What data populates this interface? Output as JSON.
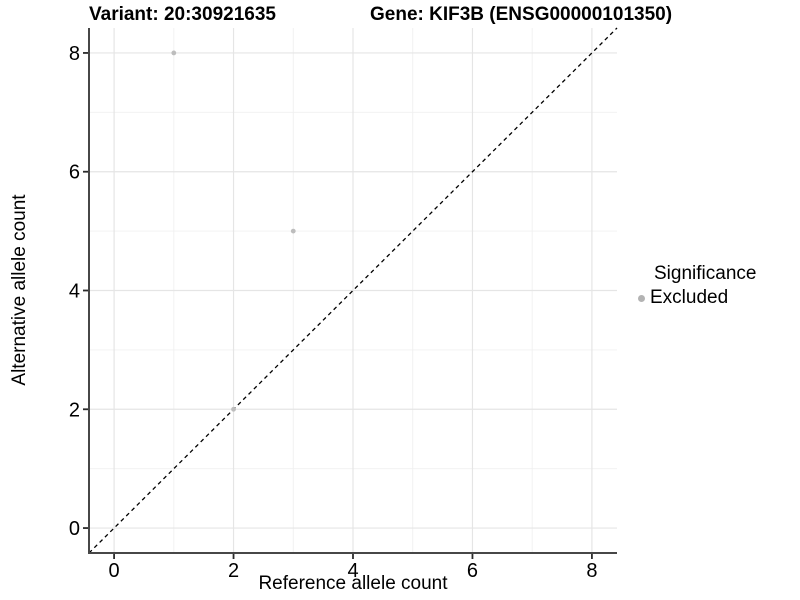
{
  "chart_data": {
    "type": "scatter",
    "title_variant": "Variant: 20:30921635",
    "title_gene": "Gene: KIF3B (ENSG00000101350)",
    "xlabel": "Reference allele count",
    "ylabel": "Alternative allele count",
    "xlim": [
      -0.42,
      8.42
    ],
    "ylim": [
      -0.42,
      8.42
    ],
    "x_major_ticks": [
      0,
      2,
      4,
      6,
      8
    ],
    "x_minor_gridlines": [
      1,
      3,
      5,
      7
    ],
    "y_major_ticks": [
      0,
      2,
      4,
      6,
      8
    ],
    "y_minor_gridlines": [
      1,
      3,
      5,
      7
    ],
    "grid": true,
    "series": [
      {
        "name": "Excluded",
        "color": "#bdbdbd",
        "points": [
          {
            "x": 1,
            "y": 8
          },
          {
            "x": 2,
            "y": 2
          },
          {
            "x": 3,
            "y": 5
          }
        ]
      }
    ],
    "reference_line": {
      "slope": 1,
      "intercept": 0,
      "style": "dashed",
      "color": "#000000"
    },
    "legend": {
      "title": "Significance",
      "position": "right",
      "items": [
        {
          "label": "Excluded",
          "color": "#b3b3b3"
        }
      ]
    },
    "colors": {
      "background": "#ffffff",
      "grid_major": "#e5e5e5",
      "grid_minor": "#f0f0f0",
      "axis_line": "#474747",
      "tick_mark": "#2a2a2a",
      "text": "#000000"
    }
  }
}
